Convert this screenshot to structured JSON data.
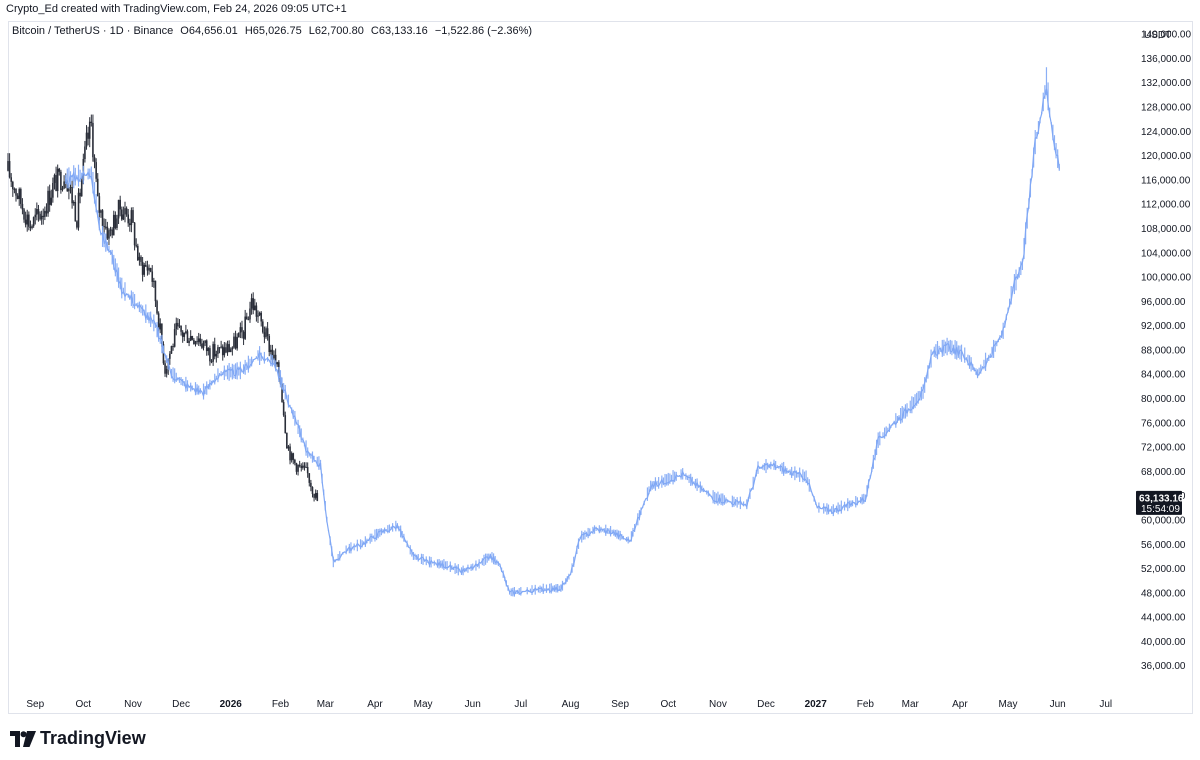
{
  "header": {
    "credit": "Crypto_Ed created with TradingView.com, Feb 24, 2026 09:05 UTC+1"
  },
  "legend": {
    "symbol": "Bitcoin / TetherUS · 1D · Binance",
    "open": "O64,656.01",
    "high": "H65,026.75",
    "low": "L62,700.80",
    "close": "C63,133.16",
    "change": "−1,522.86 (−2.36%)"
  },
  "price_axis": {
    "currency": "USDT",
    "last_price": "63,133.16",
    "countdown": "15:54:09"
  },
  "brand": {
    "name": "TradingView"
  },
  "colors": {
    "candle": "#2a2e39",
    "projection": "#7fa7f5",
    "price_tag": "#131722",
    "grid_border": "#e0e3eb"
  },
  "chart_data": {
    "type": "line",
    "title": "Bitcoin / TetherUS · 1D · Binance",
    "ylabel": "USDT",
    "ylim": [
      32000,
      142000
    ],
    "y_ticks": [
      "36,000.00",
      "40,000.00",
      "44,000.00",
      "48,000.00",
      "52,000.00",
      "56,000.00",
      "60,000.00",
      "64,000.00",
      "68,000.00",
      "72,000.00",
      "76,000.00",
      "80,000.00",
      "84,000.00",
      "88,000.00",
      "92,000.00",
      "96,000.00",
      "100,000.00",
      "104,000.00",
      "108,000.00",
      "112,000.00",
      "116,000.00",
      "120,000.00",
      "124,000.00",
      "128,000.00",
      "132,000.00",
      "136,000.00",
      "140,000.00"
    ],
    "x_ticks": [
      {
        "label": "Sep",
        "date": "2025-09-01"
      },
      {
        "label": "Oct",
        "date": "2025-10-01"
      },
      {
        "label": "Nov",
        "date": "2025-11-01"
      },
      {
        "label": "Dec",
        "date": "2025-12-01"
      },
      {
        "label": "2026",
        "date": "2026-01-01",
        "bold": true
      },
      {
        "label": "Feb",
        "date": "2026-02-01"
      },
      {
        "label": "Mar",
        "date": "2026-03-01"
      },
      {
        "label": "Apr",
        "date": "2026-04-01"
      },
      {
        "label": "May",
        "date": "2026-05-01"
      },
      {
        "label": "Jun",
        "date": "2026-06-01"
      },
      {
        "label": "Jul",
        "date": "2026-07-01"
      },
      {
        "label": "Aug",
        "date": "2026-08-01"
      },
      {
        "label": "Sep",
        "date": "2026-09-01"
      },
      {
        "label": "Oct",
        "date": "2026-10-01"
      },
      {
        "label": "Nov",
        "date": "2026-11-01"
      },
      {
        "label": "Dec",
        "date": "2026-12-01"
      },
      {
        "label": "2027",
        "date": "2027-01-01",
        "bold": true
      },
      {
        "label": "Feb",
        "date": "2027-02-01"
      },
      {
        "label": "Mar",
        "date": "2027-03-01"
      },
      {
        "label": "Apr",
        "date": "2027-04-01"
      },
      {
        "label": "May",
        "date": "2027-05-01"
      },
      {
        "label": "Jun",
        "date": "2027-06-01"
      },
      {
        "label": "Jul",
        "date": "2027-07-01"
      }
    ],
    "xlim": [
      "2025-08-15",
      "2027-07-18"
    ],
    "last_price": 63133.16,
    "series": [
      {
        "style": "candlestick",
        "points": [
          {
            "date": "2025-08-15",
            "close": 117500
          },
          {
            "date": "2025-08-22",
            "close": 113000
          },
          {
            "date": "2025-08-29",
            "close": 108500
          },
          {
            "date": "2025-09-06",
            "close": 111000
          },
          {
            "date": "2025-09-13",
            "close": 115500
          },
          {
            "date": "2025-09-20",
            "close": 117000
          },
          {
            "date": "2025-09-27",
            "close": 110000
          },
          {
            "date": "2025-10-03",
            "close": 122000
          },
          {
            "date": "2025-10-06",
            "close": 125000
          },
          {
            "date": "2025-10-10",
            "close": 112000
          },
          {
            "date": "2025-10-17",
            "close": 107000
          },
          {
            "date": "2025-10-24",
            "close": 111500
          },
          {
            "date": "2025-10-31",
            "close": 109500
          },
          {
            "date": "2025-11-05",
            "close": 102000
          },
          {
            "date": "2025-11-12",
            "close": 101500
          },
          {
            "date": "2025-11-17",
            "close": 93000
          },
          {
            "date": "2025-11-21",
            "close": 85000
          },
          {
            "date": "2025-11-28",
            "close": 91000
          },
          {
            "date": "2025-12-05",
            "close": 90500
          },
          {
            "date": "2025-12-12",
            "close": 90000
          },
          {
            "date": "2025-12-19",
            "close": 87500
          },
          {
            "date": "2025-12-26",
            "close": 87800
          },
          {
            "date": "2026-01-02",
            "close": 88500
          },
          {
            "date": "2026-01-09",
            "close": 91000
          },
          {
            "date": "2026-01-14",
            "close": 96000
          },
          {
            "date": "2026-01-19",
            "close": 93000
          },
          {
            "date": "2026-01-26",
            "close": 88000
          },
          {
            "date": "2026-02-01",
            "close": 83000
          },
          {
            "date": "2026-02-05",
            "close": 73000
          },
          {
            "date": "2026-02-08",
            "close": 70000
          },
          {
            "date": "2026-02-13",
            "close": 68500
          },
          {
            "date": "2026-02-18",
            "close": 67500
          },
          {
            "date": "2026-02-24",
            "close": 63133
          }
        ]
      },
      {
        "style": "line",
        "points": [
          {
            "date": "2025-09-20",
            "close": 116000
          },
          {
            "date": "2025-10-06",
            "close": 117000
          },
          {
            "date": "2025-10-12",
            "close": 107000
          },
          {
            "date": "2025-10-18",
            "close": 104000
          },
          {
            "date": "2025-10-25",
            "close": 98000
          },
          {
            "date": "2025-11-05",
            "close": 95000
          },
          {
            "date": "2025-11-15",
            "close": 92000
          },
          {
            "date": "2025-11-25",
            "close": 84000
          },
          {
            "date": "2025-12-05",
            "close": 82000
          },
          {
            "date": "2025-12-15",
            "close": 81000
          },
          {
            "date": "2025-12-25",
            "close": 84000
          },
          {
            "date": "2026-01-08",
            "close": 84500
          },
          {
            "date": "2026-01-18",
            "close": 87000
          },
          {
            "date": "2026-01-28",
            "close": 86000
          },
          {
            "date": "2026-02-08",
            "close": 78000
          },
          {
            "date": "2026-02-18",
            "close": 71000
          },
          {
            "date": "2026-02-26",
            "close": 69000
          },
          {
            "date": "2026-03-02",
            "close": 60000
          },
          {
            "date": "2026-03-06",
            "close": 53000
          },
          {
            "date": "2026-03-14",
            "close": 55000
          },
          {
            "date": "2026-03-24",
            "close": 56000
          },
          {
            "date": "2026-04-05",
            "close": 58000
          },
          {
            "date": "2026-04-15",
            "close": 59000
          },
          {
            "date": "2026-04-25",
            "close": 54000
          },
          {
            "date": "2026-05-05",
            "close": 53000
          },
          {
            "date": "2026-05-15",
            "close": 52500
          },
          {
            "date": "2026-05-25",
            "close": 51500
          },
          {
            "date": "2026-06-04",
            "close": 52500
          },
          {
            "date": "2026-06-12",
            "close": 54000
          },
          {
            "date": "2026-06-18",
            "close": 52500
          },
          {
            "date": "2026-06-24",
            "close": 48000
          },
          {
            "date": "2026-07-06",
            "close": 48300
          },
          {
            "date": "2026-07-16",
            "close": 48600
          },
          {
            "date": "2026-07-26",
            "close": 48700
          },
          {
            "date": "2026-08-01",
            "close": 51000
          },
          {
            "date": "2026-08-07",
            "close": 57000
          },
          {
            "date": "2026-08-17",
            "close": 58500
          },
          {
            "date": "2026-08-27",
            "close": 58000
          },
          {
            "date": "2026-09-07",
            "close": 56500
          },
          {
            "date": "2026-09-12",
            "close": 60000
          },
          {
            "date": "2026-09-20",
            "close": 65500
          },
          {
            "date": "2026-09-30",
            "close": 66500
          },
          {
            "date": "2026-10-10",
            "close": 67500
          },
          {
            "date": "2026-10-20",
            "close": 65500
          },
          {
            "date": "2026-10-30",
            "close": 63500
          },
          {
            "date": "2026-11-09",
            "close": 63000
          },
          {
            "date": "2026-11-19",
            "close": 62500
          },
          {
            "date": "2026-11-26",
            "close": 68500
          },
          {
            "date": "2026-12-06",
            "close": 69000
          },
          {
            "date": "2026-12-16",
            "close": 67800
          },
          {
            "date": "2026-12-26",
            "close": 67000
          },
          {
            "date": "2027-01-02",
            "close": 62000
          },
          {
            "date": "2027-01-12",
            "close": 61500
          },
          {
            "date": "2027-01-22",
            "close": 62500
          },
          {
            "date": "2027-02-01",
            "close": 63500
          },
          {
            "date": "2027-02-09",
            "close": 73000
          },
          {
            "date": "2027-02-19",
            "close": 76000
          },
          {
            "date": "2027-03-01",
            "close": 78500
          },
          {
            "date": "2027-03-09",
            "close": 81000
          },
          {
            "date": "2027-03-15",
            "close": 87500
          },
          {
            "date": "2027-03-25",
            "close": 88500
          },
          {
            "date": "2027-04-04",
            "close": 87000
          },
          {
            "date": "2027-04-12",
            "close": 84000
          },
          {
            "date": "2027-04-20",
            "close": 87000
          },
          {
            "date": "2027-04-28",
            "close": 91000
          },
          {
            "date": "2027-05-04",
            "close": 98000
          },
          {
            "date": "2027-05-10",
            "close": 102000
          },
          {
            "date": "2027-05-14",
            "close": 112000
          },
          {
            "date": "2027-05-18",
            "close": 122000
          },
          {
            "date": "2027-05-22",
            "close": 127000
          },
          {
            "date": "2027-05-25",
            "close": 132000
          },
          {
            "date": "2027-05-27",
            "close": 127000
          },
          {
            "date": "2027-05-30",
            "close": 122000
          },
          {
            "date": "2027-06-02",
            "close": 118000
          }
        ]
      }
    ]
  }
}
